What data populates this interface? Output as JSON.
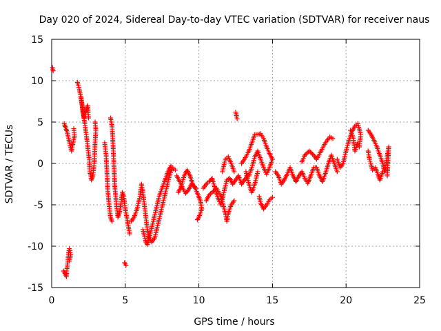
{
  "chart_data": {
    "type": "scatter",
    "title": "Day 020 of 2024, Sidereal Day-to-day VTEC variation (SDTVAR) for receiver naus",
    "xlabel": "GPS time / hours",
    "ylabel": "SDTVAR / TECUs",
    "xlim": [
      0,
      25
    ],
    "ylim": [
      -15,
      15
    ],
    "xticks": [
      0,
      5,
      10,
      15,
      20,
      25
    ],
    "yticks": [
      -15,
      -10,
      -5,
      0,
      5,
      10,
      15
    ],
    "grid": true,
    "marker": "+",
    "color": "#ff0000",
    "series": [
      {
        "name": "SDTVAR",
        "segments": [
          [
            [
              0.05,
              11.6
            ],
            [
              0.1,
              11.2
            ]
          ],
          [
            [
              0.8,
              -13.0
            ],
            [
              0.9,
              -13.3
            ],
            [
              1.0,
              -13.7
            ],
            [
              1.05,
              -12.5
            ],
            [
              1.1,
              -11.8
            ],
            [
              1.15,
              -10.8
            ],
            [
              1.2,
              -10.3
            ],
            [
              1.3,
              -11.0
            ],
            [
              1.2,
              -11.8
            ]
          ],
          [
            [
              0.85,
              4.8
            ],
            [
              0.95,
              4.3
            ],
            [
              1.05,
              3.8
            ],
            [
              1.15,
              3.0
            ],
            [
              1.25,
              2.2
            ],
            [
              1.35,
              1.5
            ],
            [
              1.45,
              2.5
            ],
            [
              1.55,
              3.3
            ],
            [
              1.5,
              4.2
            ]
          ],
          [
            [
              1.75,
              9.8
            ],
            [
              1.85,
              9.2
            ],
            [
              1.95,
              8.3
            ],
            [
              2.05,
              7.2
            ],
            [
              2.15,
              6.0
            ],
            [
              2.25,
              4.8
            ],
            [
              2.35,
              3.5
            ],
            [
              2.45,
              2.0
            ],
            [
              2.55,
              0.5
            ],
            [
              2.6,
              -1.0
            ],
            [
              2.7,
              -2.0
            ],
            [
              2.8,
              -1.5
            ],
            [
              2.9,
              0.2
            ],
            [
              2.95,
              2.5
            ],
            [
              3.0,
              4.0
            ],
            [
              2.95,
              5.0
            ]
          ],
          [
            [
              2.0,
              8.0
            ],
            [
              2.1,
              6.5
            ],
            [
              2.2,
              5.5
            ],
            [
              2.35,
              6.5
            ],
            [
              2.45,
              7.0
            ],
            [
              2.5,
              5.5
            ]
          ],
          [
            [
              3.6,
              2.5
            ],
            [
              3.7,
              1.0
            ],
            [
              3.75,
              -1.0
            ],
            [
              3.8,
              -3.0
            ],
            [
              3.9,
              -5.0
            ],
            [
              4.0,
              -6.5
            ],
            [
              4.1,
              -7.0
            ]
          ],
          [
            [
              4.0,
              5.5
            ],
            [
              4.1,
              4.5
            ],
            [
              4.15,
              3.0
            ],
            [
              4.2,
              1.0
            ],
            [
              4.25,
              -1.0
            ],
            [
              4.3,
              -3.0
            ],
            [
              4.4,
              -5.0
            ],
            [
              4.5,
              -6.5
            ],
            [
              4.6,
              -6.0
            ],
            [
              4.7,
              -5.0
            ],
            [
              4.8,
              -3.5
            ],
            [
              4.9,
              -4.0
            ],
            [
              5.0,
              -5.5
            ],
            [
              5.1,
              -6.5
            ],
            [
              5.2,
              -7.5
            ],
            [
              5.3,
              -8.5
            ]
          ],
          [
            [
              4.95,
              -12.0
            ],
            [
              5.05,
              -12.3
            ]
          ],
          [
            [
              5.4,
              -7.0
            ],
            [
              5.6,
              -6.5
            ],
            [
              5.8,
              -5.5
            ],
            [
              6.0,
              -4.0
            ],
            [
              6.1,
              -2.5
            ],
            [
              6.2,
              -3.5
            ],
            [
              6.3,
              -5.0
            ],
            [
              6.4,
              -6.5
            ],
            [
              6.5,
              -8.0
            ],
            [
              6.6,
              -9.0
            ],
            [
              6.8,
              -9.5
            ],
            [
              7.0,
              -9.0
            ],
            [
              7.2,
              -7.5
            ],
            [
              7.4,
              -6.0
            ],
            [
              7.6,
              -4.5
            ],
            [
              7.8,
              -3.0
            ],
            [
              8.0,
              -1.5
            ],
            [
              8.2,
              -0.5
            ],
            [
              8.4,
              -0.8
            ]
          ],
          [
            [
              6.2,
              -8.0
            ],
            [
              6.4,
              -9.5
            ],
            [
              6.5,
              -9.8
            ],
            [
              6.7,
              -8.5
            ],
            [
              6.9,
              -7.0
            ],
            [
              7.1,
              -5.5
            ],
            [
              7.3,
              -4.0
            ],
            [
              7.5,
              -3.0
            ],
            [
              7.7,
              -2.0
            ],
            [
              7.9,
              -1.0
            ],
            [
              8.1,
              -0.3
            ]
          ],
          [
            [
              8.5,
              -1.5
            ],
            [
              8.7,
              -2.2
            ],
            [
              8.9,
              -3.0
            ],
            [
              9.1,
              -3.6
            ],
            [
              9.3,
              -3.2
            ],
            [
              9.5,
              -2.5
            ],
            [
              9.7,
              -2.8
            ],
            [
              9.9,
              -3.6
            ],
            [
              10.1,
              -4.5
            ],
            [
              10.2,
              -5.5
            ],
            [
              10.0,
              -6.5
            ],
            [
              9.9,
              -6.8
            ]
          ],
          [
            [
              8.6,
              -3.5
            ],
            [
              8.8,
              -2.8
            ],
            [
              9.0,
              -1.5
            ],
            [
              9.2,
              -0.8
            ],
            [
              9.4,
              -1.5
            ],
            [
              9.6,
              -2.6
            ],
            [
              9.8,
              -3.0
            ]
          ],
          [
            [
              10.3,
              -3.0
            ],
            [
              10.5,
              -2.5
            ],
            [
              10.7,
              -2.2
            ],
            [
              10.9,
              -1.8
            ],
            [
              11.1,
              -3.0
            ],
            [
              11.3,
              -4.2
            ],
            [
              11.5,
              -5.0
            ],
            [
              11.7,
              -3.5
            ],
            [
              11.9,
              -2.0
            ],
            [
              12.1,
              -1.8
            ],
            [
              12.3,
              -2.5
            ],
            [
              12.5,
              -2.0
            ],
            [
              12.7,
              -1.5
            ],
            [
              12.9,
              -2.5
            ],
            [
              13.1,
              -2.0
            ],
            [
              13.3,
              -1.5
            ]
          ],
          [
            [
              10.5,
              -4.5
            ],
            [
              10.7,
              -3.8
            ],
            [
              10.9,
              -3.5
            ],
            [
              11.2,
              -3.0
            ],
            [
              11.5,
              -4.0
            ],
            [
              11.8,
              -6.0
            ],
            [
              11.9,
              -7.0
            ],
            [
              12.0,
              -6.0
            ],
            [
              12.2,
              -5.0
            ],
            [
              12.4,
              -4.5
            ]
          ],
          [
            [
              11.6,
              -1.0
            ],
            [
              11.8,
              0.5
            ],
            [
              12.0,
              0.8
            ],
            [
              12.2,
              0.0
            ],
            [
              12.4,
              -1.0
            ]
          ],
          [
            [
              12.5,
              6.2
            ],
            [
              12.6,
              5.4
            ]
          ],
          [
            [
              12.9,
              0.0
            ],
            [
              13.1,
              0.5
            ],
            [
              13.4,
              1.5
            ],
            [
              13.6,
              2.5
            ],
            [
              13.8,
              3.5
            ],
            [
              14.0,
              3.5
            ],
            [
              14.2,
              3.6
            ],
            [
              14.4,
              3.0
            ],
            [
              14.6,
              2.0
            ],
            [
              14.8,
              1.2
            ],
            [
              15.0,
              0.5
            ]
          ],
          [
            [
              13.4,
              -1.5
            ],
            [
              13.6,
              -0.5
            ],
            [
              13.8,
              0.8
            ],
            [
              14.0,
              1.5
            ],
            [
              14.2,
              0.5
            ],
            [
              14.4,
              -0.5
            ],
            [
              14.6,
              -1.3
            ],
            [
              14.8,
              -0.5
            ],
            [
              15.0,
              0.5
            ]
          ],
          [
            [
              13.2,
              -1.0
            ],
            [
              13.4,
              -2.5
            ],
            [
              13.6,
              -3.5
            ],
            [
              13.8,
              -2.5
            ],
            [
              14.0,
              -1.0
            ]
          ],
          [
            [
              14.1,
              -4.0
            ],
            [
              14.2,
              -4.8
            ],
            [
              14.4,
              -5.5
            ],
            [
              14.6,
              -5.0
            ],
            [
              14.8,
              -4.4
            ],
            [
              15.0,
              -4.1
            ]
          ],
          [
            [
              15.2,
              -1.0
            ],
            [
              15.4,
              -1.5
            ],
            [
              15.6,
              -2.5
            ],
            [
              15.8,
              -2.0
            ],
            [
              16.0,
              -1.3
            ],
            [
              16.2,
              -0.5
            ],
            [
              16.4,
              -1.5
            ],
            [
              16.6,
              -2.2
            ],
            [
              16.8,
              -1.5
            ],
            [
              17.0,
              -1.0
            ],
            [
              17.2,
              -1.8
            ],
            [
              17.4,
              -2.4
            ],
            [
              17.6,
              -1.5
            ],
            [
              17.8,
              -0.5
            ],
            [
              18.0,
              -0.5
            ],
            [
              18.2,
              -1.5
            ],
            [
              18.4,
              -2.2
            ],
            [
              18.6,
              -1.2
            ],
            [
              18.8,
              0.0
            ],
            [
              19.0,
              1.0
            ],
            [
              19.2,
              0.0
            ],
            [
              19.4,
              -1.0
            ]
          ],
          [
            [
              17.0,
              0.2
            ],
            [
              17.2,
              1.0
            ],
            [
              17.5,
              1.5
            ],
            [
              17.8,
              1.0
            ],
            [
              18.0,
              0.5
            ],
            [
              18.3,
              1.5
            ],
            [
              18.6,
              2.5
            ],
            [
              18.9,
              3.2
            ],
            [
              19.1,
              3.0
            ]
          ],
          [
            [
              19.4,
              0.5
            ],
            [
              19.6,
              -0.5
            ],
            [
              19.8,
              0.0
            ],
            [
              20.0,
              1.5
            ],
            [
              20.2,
              2.8
            ],
            [
              20.4,
              3.8
            ],
            [
              20.6,
              4.5
            ],
            [
              20.8,
              4.8
            ],
            [
              21.0,
              3.5
            ],
            [
              20.9,
              2.0
            ]
          ],
          [
            [
              20.3,
              4.0
            ],
            [
              20.5,
              3.0
            ],
            [
              20.6,
              1.5
            ],
            [
              20.8,
              2.5
            ]
          ],
          [
            [
              21.5,
              4.0
            ],
            [
              21.7,
              3.5
            ],
            [
              21.9,
              2.8
            ],
            [
              22.1,
              2.0
            ],
            [
              22.3,
              1.0
            ],
            [
              22.5,
              0.0
            ],
            [
              22.6,
              -1.0
            ],
            [
              22.7,
              -0.5
            ],
            [
              22.8,
              1.0
            ],
            [
              22.9,
              2.0
            ],
            [
              22.8,
              -1.5
            ]
          ],
          [
            [
              21.5,
              1.5
            ],
            [
              21.6,
              0.5
            ],
            [
              21.7,
              -0.2
            ],
            [
              21.8,
              -0.8
            ],
            [
              22.0,
              -0.5
            ],
            [
              22.2,
              -1.5
            ],
            [
              22.3,
              -2.0
            ],
            [
              22.5,
              -1.0
            ]
          ]
        ]
      }
    ]
  }
}
